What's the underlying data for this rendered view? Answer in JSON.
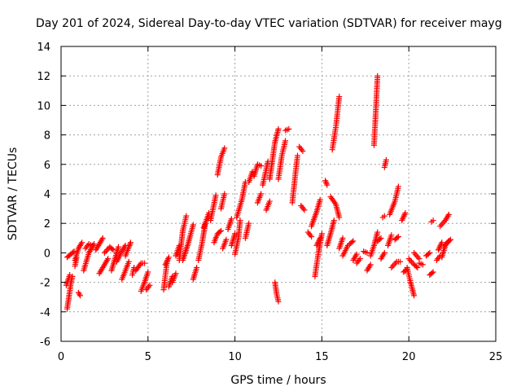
{
  "chart_data": {
    "type": "scatter",
    "title": "Day 201 of 2024, Sidereal Day-to-day VTEC variation (SDTVAR) for receiver mayg",
    "xlabel": "GPS time / hours",
    "ylabel": "SDTVAR / TECUs",
    "xlim": [
      0,
      25
    ],
    "ylim": [
      -6,
      14
    ],
    "x_ticks": [
      0,
      5,
      10,
      15,
      20,
      25
    ],
    "y_ticks": [
      -6,
      -4,
      -2,
      0,
      2,
      4,
      6,
      8,
      10,
      12,
      14
    ],
    "x_tick_labels": [
      "0",
      "5",
      "10",
      "15",
      "20",
      "25"
    ],
    "y_tick_labels": [
      "-6",
      "-4",
      "-2",
      "0",
      "2",
      "4",
      "6",
      "8",
      "10",
      "12",
      "14"
    ],
    "grid": true,
    "marker": "+",
    "marker_color": "#ff0000",
    "series": [
      {
        "name": "SDTVAR",
        "segments": [
          [
            [
              0.35,
              -0.3
            ],
            [
              0.55,
              -0.1
            ],
            [
              0.75,
              0.1
            ]
          ],
          [
            [
              0.35,
              -3.8
            ],
            [
              0.45,
              -3.0
            ],
            [
              0.55,
              -2.2
            ],
            [
              0.65,
              -1.6
            ]
          ],
          [
            [
              0.3,
              -2.2
            ],
            [
              0.5,
              -1.5
            ]
          ],
          [
            [
              0.8,
              -0.5
            ],
            [
              1.0,
              0.3
            ],
            [
              1.2,
              0.7
            ]
          ],
          [
            [
              0.8,
              -0.9
            ],
            [
              0.9,
              -0.3
            ]
          ],
          [
            [
              1.0,
              -2.7
            ],
            [
              1.1,
              -2.9
            ]
          ],
          [
            [
              1.3,
              -1.2
            ],
            [
              1.6,
              0.0
            ],
            [
              1.9,
              0.6
            ]
          ],
          [
            [
              1.4,
              0.3
            ],
            [
              1.6,
              0.6
            ],
            [
              1.8,
              0.5
            ]
          ],
          [
            [
              2.0,
              0.2
            ],
            [
              2.2,
              0.6
            ],
            [
              2.4,
              1.0
            ]
          ],
          [
            [
              2.2,
              -1.4
            ],
            [
              2.4,
              -1.0
            ],
            [
              2.7,
              -0.4
            ]
          ],
          [
            [
              2.5,
              0.0
            ],
            [
              2.8,
              0.4
            ],
            [
              3.0,
              0.2
            ]
          ],
          [
            [
              2.9,
              -1.2
            ],
            [
              3.1,
              -0.4
            ],
            [
              3.3,
              0.4
            ]
          ],
          [
            [
              3.2,
              -0.6
            ],
            [
              3.5,
              0.1
            ],
            [
              3.7,
              0.5
            ]
          ],
          [
            [
              3.5,
              -1.8
            ],
            [
              3.7,
              -1.2
            ],
            [
              3.9,
              -0.6
            ]
          ],
          [
            [
              3.7,
              -0.2
            ],
            [
              3.9,
              0.4
            ],
            [
              4.0,
              0.7
            ]
          ],
          [
            [
              4.1,
              -1.5
            ],
            [
              4.2,
              -1.0
            ]
          ],
          [
            [
              4.3,
              -1.2
            ],
            [
              4.6,
              -0.7
            ],
            [
              4.8,
              -0.7
            ]
          ],
          [
            [
              4.6,
              -2.6
            ],
            [
              4.8,
              -2.0
            ],
            [
              5.0,
              -1.3
            ]
          ],
          [
            [
              4.9,
              -2.5
            ],
            [
              5.1,
              -2.2
            ]
          ],
          [
            [
              5.9,
              -2.5
            ],
            [
              6.0,
              -1.5
            ],
            [
              6.1,
              -0.6
            ]
          ],
          [
            [
              6.0,
              -0.8
            ],
            [
              6.2,
              -0.3
            ]
          ],
          [
            [
              6.2,
              -2.3
            ],
            [
              6.4,
              -1.6
            ]
          ],
          [
            [
              6.4,
              -2.0
            ],
            [
              6.6,
              -1.4
            ]
          ],
          [
            [
              6.6,
              -0.2
            ],
            [
              6.8,
              0.5
            ]
          ],
          [
            [
              6.8,
              -0.5
            ],
            [
              7.0,
              1.5
            ],
            [
              7.2,
              2.5
            ]
          ],
          [
            [
              7.0,
              -0.5
            ],
            [
              7.3,
              0.6
            ],
            [
              7.6,
              1.9
            ]
          ],
          [
            [
              7.6,
              -1.8
            ],
            [
              7.8,
              -1.0
            ]
          ],
          [
            [
              7.9,
              -0.5
            ],
            [
              8.1,
              0.6
            ],
            [
              8.3,
              2.0
            ]
          ],
          [
            [
              8.2,
              1.7
            ],
            [
              8.5,
              2.7
            ]
          ],
          [
            [
              8.6,
              2.2
            ],
            [
              8.9,
              3.9
            ]
          ],
          [
            [
              8.8,
              0.7
            ],
            [
              9.0,
              1.3
            ],
            [
              9.2,
              1.5
            ]
          ],
          [
            [
              9.0,
              5.3
            ],
            [
              9.2,
              6.5
            ],
            [
              9.4,
              7.1
            ]
          ],
          [
            [
              9.2,
              3.0
            ],
            [
              9.4,
              4.0
            ]
          ],
          [
            [
              9.3,
              0.3
            ],
            [
              9.5,
              0.9
            ]
          ],
          [
            [
              9.6,
              1.6
            ],
            [
              9.8,
              2.3
            ]
          ],
          [
            [
              9.8,
              0.5
            ],
            [
              10.0,
              1.3
            ]
          ],
          [
            [
              10.0,
              -0.1
            ],
            [
              10.2,
              1.0
            ],
            [
              10.3,
              2.2
            ]
          ],
          [
            [
              10.1,
              2.4
            ],
            [
              10.4,
              3.6
            ],
            [
              10.6,
              4.8
            ]
          ],
          [
            [
              10.6,
              1.0
            ],
            [
              10.8,
              2.0
            ]
          ],
          [
            [
              10.8,
              4.8
            ],
            [
              11.0,
              5.5
            ]
          ],
          [
            [
              11.1,
              5.2
            ],
            [
              11.3,
              6.0
            ],
            [
              11.5,
              5.9
            ]
          ],
          [
            [
              11.3,
              3.4
            ],
            [
              11.5,
              4.0
            ]
          ],
          [
            [
              11.6,
              4.6
            ],
            [
              11.9,
              6.2
            ]
          ],
          [
            [
              11.8,
              2.9
            ],
            [
              12.0,
              3.5
            ]
          ],
          [
            [
              12.0,
              5.0
            ],
            [
              12.3,
              7.5
            ],
            [
              12.5,
              8.4
            ]
          ],
          [
            [
              12.3,
              -2.0
            ],
            [
              12.4,
              -2.8
            ],
            [
              12.5,
              -3.3
            ]
          ],
          [
            [
              12.5,
              5.0
            ],
            [
              12.7,
              6.6
            ],
            [
              12.9,
              7.6
            ]
          ],
          [
            [
              12.9,
              8.3
            ],
            [
              13.1,
              8.4
            ]
          ],
          [
            [
              13.3,
              3.4
            ],
            [
              13.5,
              5.6
            ],
            [
              13.6,
              6.6
            ]
          ],
          [
            [
              13.7,
              7.2
            ],
            [
              13.9,
              6.9
            ]
          ],
          [
            [
              13.8,
              3.2
            ],
            [
              14.0,
              2.9
            ]
          ],
          [
            [
              14.2,
              1.4
            ],
            [
              14.4,
              1.1
            ]
          ],
          [
            [
              14.4,
              1.8
            ],
            [
              14.7,
              2.8
            ],
            [
              14.9,
              3.6
            ]
          ],
          [
            [
              14.6,
              -1.6
            ],
            [
              14.8,
              0.0
            ],
            [
              15.0,
              1.3
            ]
          ],
          [
            [
              14.7,
              0.5
            ],
            [
              14.9,
              1.0
            ]
          ],
          [
            [
              15.2,
              4.9
            ],
            [
              15.3,
              4.6
            ]
          ],
          [
            [
              15.3,
              0.5
            ],
            [
              15.5,
              1.3
            ],
            [
              15.7,
              2.2
            ]
          ],
          [
            [
              15.5,
              3.8
            ],
            [
              15.8,
              3.3
            ],
            [
              16.0,
              2.4
            ]
          ],
          [
            [
              15.6,
              7.0
            ],
            [
              15.8,
              8.5
            ],
            [
              16.0,
              10.6
            ]
          ],
          [
            [
              16.0,
              0.3
            ],
            [
              16.2,
              1.0
            ]
          ],
          [
            [
              16.2,
              -0.2
            ],
            [
              16.5,
              0.5
            ]
          ],
          [
            [
              16.6,
              0.6
            ],
            [
              16.8,
              0.8
            ]
          ],
          [
            [
              16.8,
              -0.5
            ],
            [
              17.0,
              -0.1
            ]
          ],
          [
            [
              17.0,
              -0.7
            ],
            [
              17.2,
              -0.4
            ]
          ],
          [
            [
              17.4,
              0.1
            ],
            [
              17.6,
              0.0
            ]
          ],
          [
            [
              17.6,
              -1.2
            ],
            [
              17.8,
              -0.8
            ]
          ],
          [
            [
              17.8,
              -0.2
            ],
            [
              18.0,
              0.5
            ],
            [
              18.2,
              1.4
            ]
          ],
          [
            [
              18.0,
              7.3
            ],
            [
              18.1,
              9.6
            ],
            [
              18.2,
              12.0
            ]
          ],
          [
            [
              18.2,
              0.8
            ],
            [
              18.4,
              1.0
            ]
          ],
          [
            [
              18.4,
              -0.4
            ],
            [
              18.6,
              0.0
            ]
          ],
          [
            [
              18.5,
              2.4
            ],
            [
              18.6,
              2.5
            ]
          ],
          [
            [
              18.6,
              5.8
            ],
            [
              18.7,
              6.3
            ]
          ],
          [
            [
              18.8,
              0.5
            ],
            [
              19.0,
              1.2
            ]
          ],
          [
            [
              18.9,
              2.6
            ],
            [
              19.2,
              3.5
            ],
            [
              19.4,
              4.5
            ]
          ],
          [
            [
              19.0,
              -1.0
            ],
            [
              19.3,
              -0.6
            ],
            [
              19.5,
              -0.6
            ]
          ],
          [
            [
              19.2,
              0.9
            ],
            [
              19.4,
              1.1
            ]
          ],
          [
            [
              19.6,
              2.2
            ],
            [
              19.8,
              2.7
            ]
          ],
          [
            [
              19.7,
              -1.3
            ],
            [
              19.9,
              -1.1
            ]
          ],
          [
            [
              19.9,
              -1.0
            ],
            [
              20.1,
              -2.0
            ],
            [
              20.3,
              -2.9
            ]
          ],
          [
            [
              20.0,
              -0.4
            ],
            [
              20.3,
              -0.8
            ],
            [
              20.5,
              -1.0
            ]
          ],
          [
            [
              20.3,
              0.0
            ],
            [
              20.6,
              -0.4
            ]
          ],
          [
            [
              20.6,
              -0.7
            ],
            [
              20.8,
              -0.8
            ]
          ],
          [
            [
              21.0,
              -0.2
            ],
            [
              21.2,
              0.0
            ]
          ],
          [
            [
              21.2,
              -1.5
            ],
            [
              21.4,
              -1.3
            ]
          ],
          [
            [
              21.3,
              2.1
            ],
            [
              21.4,
              2.2
            ]
          ],
          [
            [
              21.6,
              -0.5
            ],
            [
              21.8,
              -0.2
            ]
          ],
          [
            [
              21.7,
              0.2
            ],
            [
              21.9,
              0.7
            ]
          ],
          [
            [
              21.8,
              1.8
            ],
            [
              22.1,
              2.2
            ],
            [
              22.3,
              2.6
            ]
          ],
          [
            [
              21.9,
              -0.3
            ],
            [
              22.1,
              0.5
            ],
            [
              22.3,
              0.8
            ]
          ],
          [
            [
              22.0,
              0.4
            ],
            [
              22.2,
              0.7
            ],
            [
              22.4,
              0.9
            ]
          ]
        ]
      }
    ]
  }
}
